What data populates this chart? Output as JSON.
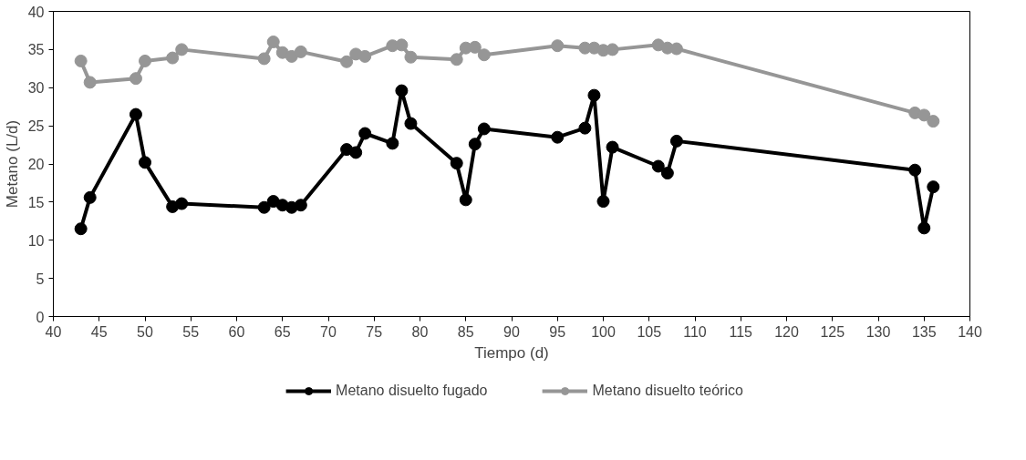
{
  "chart_data": {
    "type": "line",
    "xlabel": "Tiempo (d)",
    "ylabel": "Metano (L/d)",
    "xlim": [
      40,
      140
    ],
    "ylim": [
      0,
      40
    ],
    "xticks": [
      40,
      45,
      50,
      55,
      60,
      65,
      70,
      75,
      80,
      85,
      90,
      95,
      100,
      105,
      110,
      115,
      120,
      125,
      130,
      135,
      140
    ],
    "yticks": [
      0,
      5,
      10,
      15,
      20,
      25,
      30,
      35,
      40
    ],
    "x": [
      43,
      44,
      49,
      50,
      53,
      54,
      63,
      64,
      65,
      66,
      67,
      72,
      73,
      74,
      77,
      78,
      79,
      84,
      85,
      86,
      87,
      95,
      98,
      99,
      100,
      101,
      106,
      107,
      108,
      134,
      135,
      136
    ],
    "series": [
      {
        "name": "Metano disuelto fugado",
        "color": "#000000",
        "values": [
          11.5,
          15.6,
          26.5,
          20.2,
          14.4,
          14.8,
          14.3,
          15.1,
          14.6,
          14.3,
          14.6,
          21.9,
          21.5,
          24.0,
          22.7,
          29.6,
          25.3,
          20.1,
          15.3,
          22.6,
          24.6,
          23.5,
          24.7,
          29.0,
          15.1,
          22.2,
          19.7,
          18.8,
          23.0,
          19.2,
          11.6,
          17.0
        ]
      },
      {
        "name": "Metano disuelto teórico",
        "color": "#969696",
        "values": [
          33.5,
          30.7,
          31.2,
          33.5,
          33.9,
          35.0,
          33.8,
          36.0,
          34.6,
          34.1,
          34.7,
          33.4,
          34.4,
          34.1,
          35.5,
          35.6,
          34.0,
          33.7,
          35.2,
          35.3,
          34.3,
          35.5,
          35.2,
          35.2,
          34.9,
          35.0,
          35.6,
          35.2,
          35.1,
          26.7,
          26.4,
          25.6
        ]
      }
    ],
    "grid": false,
    "legend": "bottom",
    "marker": "circle",
    "line_style": "solid"
  }
}
